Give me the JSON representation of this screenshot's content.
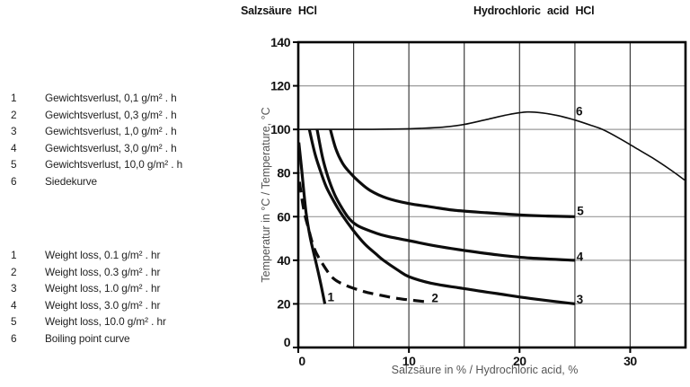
{
  "titles": {
    "de": "Salzsäure HCl",
    "en": "Hydrochloric acid HCl"
  },
  "legend_de": {
    "items": [
      {
        "num": "1",
        "label": "Gewichtsverlust, 0,1 g/m² . h"
      },
      {
        "num": "2",
        "label": "Gewichtsverlust, 0,3 g/m² . h"
      },
      {
        "num": "3",
        "label": "Gewichtsverlust, 1,0 g/m² . h"
      },
      {
        "num": "4",
        "label": "Gewichtsverlust, 3,0 g/m² . h"
      },
      {
        "num": "5",
        "label": "Gewichtsverlust, 10,0 g/m² . h"
      },
      {
        "num": "6",
        "label": "Siedekurve"
      }
    ]
  },
  "legend_en": {
    "items": [
      {
        "num": "1",
        "label": "Weight loss, 0.1 g/m² . hr"
      },
      {
        "num": "2",
        "label": "Weight loss, 0.3 g/m² . hr"
      },
      {
        "num": "3",
        "label": "Weight loss, 1.0 g/m² . hr"
      },
      {
        "num": "4",
        "label": "Weight loss, 3.0 g/m² . hr"
      },
      {
        "num": "5",
        "label": "Weight loss, 10.0 g/m² . hr"
      },
      {
        "num": "6",
        "label": "Boiling point curve"
      }
    ]
  },
  "chart_data": {
    "type": "line",
    "xlabel": "Salzsäure in % / Hydrochloric acid, %",
    "ylabel": "Temperatur in °C / Temperature, °C",
    "xlim": [
      0,
      35
    ],
    "ylim": [
      0,
      140
    ],
    "x_ticks": [
      0,
      10,
      20,
      30
    ],
    "y_ticks": [
      0,
      20,
      40,
      60,
      80,
      100,
      120,
      140
    ],
    "x_grid_step": 5,
    "y_grid_step": 20,
    "grid": true,
    "legend_position": "outside-left",
    "series": [
      {
        "name": "1",
        "meaning": "weight loss 0.1 g/m²·h",
        "style": "solid",
        "width": 3.2,
        "label_pos": [
          2.95,
          23.3
        ],
        "points": [
          [
            0.05,
            94
          ],
          [
            0.3,
            82
          ],
          [
            0.7,
            62
          ],
          [
            1.1,
            50
          ],
          [
            1.6,
            39
          ],
          [
            2.0,
            30
          ],
          [
            2.4,
            20
          ]
        ]
      },
      {
        "name": "2",
        "meaning": "weight loss 0.3 g/m²·h",
        "style": "dashed",
        "width": 3.2,
        "label_pos": [
          12.35,
          22.8
        ],
        "points": [
          [
            0.1,
            76
          ],
          [
            0.5,
            63
          ],
          [
            0.9,
            55
          ],
          [
            1.4,
            46
          ],
          [
            2.0,
            40
          ],
          [
            3.1,
            32
          ],
          [
            4.3,
            28.5
          ],
          [
            5.7,
            26
          ],
          [
            6.9,
            24.5
          ],
          [
            9,
            22.5
          ],
          [
            11.5,
            21
          ]
        ]
      },
      {
        "name": "3",
        "meaning": "weight loss 1.0 g/m²·h",
        "style": "solid",
        "width": 3.2,
        "label_pos": [
          25.45,
          22.3
        ],
        "points": [
          [
            1.0,
            100
          ],
          [
            1.5,
            89
          ],
          [
            2.0,
            81
          ],
          [
            2.5,
            74
          ],
          [
            3.0,
            69
          ],
          [
            3.5,
            64.5
          ],
          [
            4.0,
            60.5
          ],
          [
            5,
            53.5
          ],
          [
            6,
            47.5
          ],
          [
            7,
            43
          ],
          [
            7.7,
            40
          ],
          [
            9,
            35.5
          ],
          [
            10,
            32.5
          ],
          [
            12,
            29.5
          ],
          [
            15,
            27
          ],
          [
            18,
            24.7
          ],
          [
            21,
            22.5
          ],
          [
            25,
            20
          ]
        ]
      },
      {
        "name": "4",
        "meaning": "weight loss 3.0 g/m²·h",
        "style": "solid",
        "width": 3.2,
        "label_pos": [
          25.45,
          41.8
        ],
        "points": [
          [
            1.7,
            100
          ],
          [
            2.2,
            87
          ],
          [
            2.7,
            78
          ],
          [
            3.3,
            70
          ],
          [
            4.0,
            63.5
          ],
          [
            4.7,
            58.5
          ],
          [
            5.5,
            55.5
          ],
          [
            7,
            52.5
          ],
          [
            8,
            51
          ],
          [
            10,
            49
          ],
          [
            12.5,
            46.5
          ],
          [
            15,
            44.5
          ],
          [
            18,
            42.5
          ],
          [
            21,
            41
          ],
          [
            25,
            40
          ]
        ]
      },
      {
        "name": "5",
        "meaning": "weight loss 10.0 g/m²·h",
        "style": "solid",
        "width": 3.2,
        "label_pos": [
          25.5,
          62.8
        ],
        "points": [
          [
            2.9,
            100
          ],
          [
            3.4,
            91
          ],
          [
            4.0,
            84.5
          ],
          [
            4.7,
            80
          ],
          [
            5.5,
            76
          ],
          [
            6.5,
            72
          ],
          [
            8,
            68.5
          ],
          [
            10,
            66
          ],
          [
            12,
            64.5
          ],
          [
            14,
            63
          ],
          [
            17,
            61.8
          ],
          [
            20,
            60.8
          ],
          [
            22.5,
            60.3
          ],
          [
            25,
            60
          ]
        ]
      },
      {
        "name": "6",
        "meaning": "boiling point curve",
        "style": "solid",
        "width": 1.6,
        "label_pos": [
          25.4,
          108.5
        ],
        "points": [
          [
            0,
            100
          ],
          [
            3,
            100
          ],
          [
            6,
            100
          ],
          [
            9,
            100.2
          ],
          [
            11,
            100.5
          ],
          [
            13,
            101
          ],
          [
            15,
            102.3
          ],
          [
            17,
            104.5
          ],
          [
            19,
            106.8
          ],
          [
            20.7,
            108
          ],
          [
            22,
            107.6
          ],
          [
            23.5,
            106.3
          ],
          [
            25,
            104.3
          ],
          [
            26.5,
            101.8
          ],
          [
            27.5,
            100
          ],
          [
            29,
            96
          ],
          [
            30.5,
            91.5
          ],
          [
            32,
            87
          ],
          [
            33.5,
            82
          ],
          [
            35,
            76.5
          ]
        ]
      }
    ]
  },
  "colors": {
    "ink": "#0d0d0d",
    "frame": "#000000",
    "grid_vertical": "#3d3d3d",
    "grid_horizontal": "#9a9a9a",
    "axis_text": "#555555",
    "tick_text": "#111111"
  }
}
